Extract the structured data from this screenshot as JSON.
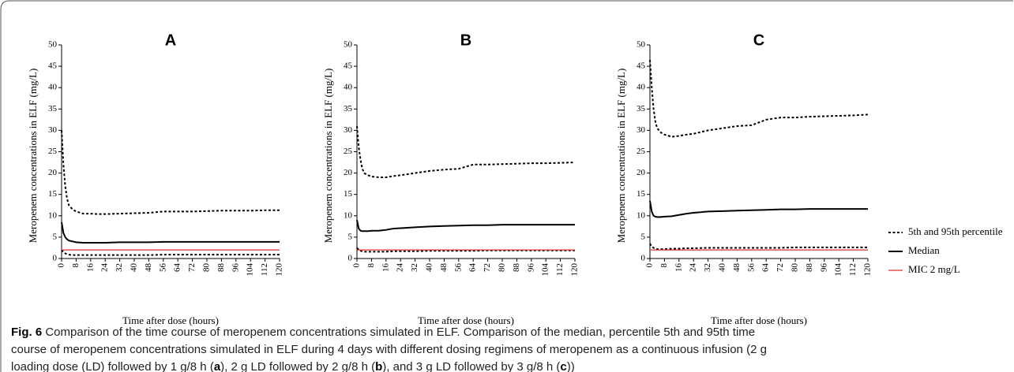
{
  "chart_data": [
    {
      "type": "line",
      "title": "A",
      "xlabel": "Time after dose (hours)",
      "ylabel": "Meropenem concentrations in ELF (mg/L)",
      "x": [
        0,
        1,
        2,
        3,
        4,
        6,
        8,
        12,
        16,
        20,
        24,
        32,
        40,
        48,
        56,
        64,
        72,
        80,
        88,
        96,
        104,
        112,
        120
      ],
      "series": [
        {
          "name": "5th and 95th percentile",
          "color": "#000000",
          "dash": true,
          "values": [
            30,
            22,
            17,
            14,
            12.5,
            11.5,
            11,
            10.5,
            10.5,
            10.4,
            10.4,
            10.5,
            10.6,
            10.7,
            11,
            11,
            11,
            11.1,
            11.2,
            11.2,
            11.2,
            11.3,
            11.3
          ]
        },
        {
          "name": "Median",
          "color": "#000000",
          "dash": false,
          "values": [
            8.5,
            6,
            5,
            4.5,
            4.2,
            4,
            3.8,
            3.7,
            3.7,
            3.7,
            3.7,
            3.8,
            3.8,
            3.8,
            3.9,
            3.9,
            3.9,
            3.9,
            3.9,
            3.9,
            3.9,
            3.9,
            3.9
          ]
        },
        {
          "name": "5th and 95th percentile",
          "color": "#000000",
          "dash": true,
          "values": [
            2,
            1.5,
            1.2,
            1,
            0.9,
            0.8,
            0.8,
            0.8,
            0.8,
            0.8,
            0.8,
            0.8,
            0.8,
            0.8,
            0.9,
            0.9,
            0.9,
            0.9,
            0.9,
            0.9,
            0.9,
            0.9,
            0.9
          ]
        },
        {
          "name": "MIC 2 mg/L",
          "color": "#e03030",
          "dash": false,
          "values": [
            2,
            2,
            2,
            2,
            2,
            2,
            2,
            2,
            2,
            2,
            2,
            2,
            2,
            2,
            2,
            2,
            2,
            2,
            2,
            2,
            2,
            2,
            2
          ]
        }
      ],
      "xlim": [
        0,
        120
      ],
      "xticks": [
        0,
        8,
        16,
        24,
        32,
        40,
        48,
        56,
        64,
        72,
        80,
        88,
        96,
        104,
        112,
        120
      ],
      "ylim": [
        0,
        50
      ],
      "yticks": [
        0,
        5,
        10,
        15,
        20,
        25,
        30,
        35,
        40,
        45,
        50
      ]
    },
    {
      "type": "line",
      "title": "B",
      "xlabel": "Time after dose (hours)",
      "ylabel": "Meropenem concentrations in ELF (mg/L)",
      "x": [
        0,
        1,
        2,
        3,
        4,
        6,
        8,
        12,
        16,
        20,
        24,
        32,
        40,
        48,
        56,
        64,
        72,
        80,
        88,
        96,
        104,
        112,
        120
      ],
      "series": [
        {
          "name": "5th and 95th percentile",
          "color": "#000000",
          "dash": true,
          "values": [
            31,
            26,
            23,
            21,
            20,
            19.5,
            19.2,
            19,
            19,
            19.3,
            19.5,
            20,
            20.5,
            20.8,
            21,
            22,
            22,
            22.1,
            22.2,
            22.3,
            22.3,
            22.4,
            22.5
          ]
        },
        {
          "name": "Median",
          "color": "#000000",
          "dash": false,
          "values": [
            9,
            7,
            6.5,
            6.4,
            6.4,
            6.4,
            6.5,
            6.5,
            6.7,
            7,
            7.1,
            7.3,
            7.5,
            7.6,
            7.7,
            7.8,
            7.8,
            7.9,
            7.9,
            7.9,
            7.9,
            7.9,
            7.9
          ]
        },
        {
          "name": "5th and 95th percentile",
          "color": "#000000",
          "dash": true,
          "values": [
            2.5,
            2,
            1.8,
            1.7,
            1.6,
            1.6,
            1.6,
            1.6,
            1.6,
            1.7,
            1.7,
            1.7,
            1.8,
            1.8,
            1.8,
            1.8,
            1.9,
            1.9,
            1.9,
            1.9,
            1.9,
            1.9,
            1.9
          ]
        },
        {
          "name": "MIC 2 mg/L",
          "color": "#e03030",
          "dash": false,
          "values": [
            2,
            2,
            2,
            2,
            2,
            2,
            2,
            2,
            2,
            2,
            2,
            2,
            2,
            2,
            2,
            2,
            2,
            2,
            2,
            2,
            2,
            2,
            2
          ]
        }
      ],
      "xlim": [
        0,
        120
      ],
      "xticks": [
        0,
        8,
        16,
        24,
        32,
        40,
        48,
        56,
        64,
        72,
        80,
        88,
        96,
        104,
        112,
        120
      ],
      "ylim": [
        0,
        50
      ],
      "yticks": [
        0,
        5,
        10,
        15,
        20,
        25,
        30,
        35,
        40,
        45,
        50
      ]
    },
    {
      "type": "line",
      "title": "C",
      "xlabel": "Time after dose (hours)",
      "ylabel": "Meropenem concentrations in ELF (mg/L)",
      "x": [
        0,
        1,
        2,
        3,
        4,
        6,
        8,
        12,
        16,
        20,
        24,
        32,
        40,
        48,
        56,
        64,
        72,
        80,
        88,
        96,
        104,
        112,
        120
      ],
      "series": [
        {
          "name": "5th and 95th percentile",
          "color": "#000000",
          "dash": true,
          "values": [
            46.5,
            40,
            35,
            32,
            30.5,
            29.5,
            29,
            28.5,
            28.7,
            29,
            29.2,
            30,
            30.5,
            31,
            31.2,
            32.5,
            33,
            33,
            33.2,
            33.3,
            33.4,
            33.5,
            33.7
          ]
        },
        {
          "name": "Median",
          "color": "#000000",
          "dash": false,
          "values": [
            13.5,
            11,
            10,
            9.8,
            9.7,
            9.7,
            9.8,
            9.9,
            10.2,
            10.5,
            10.7,
            11,
            11.1,
            11.2,
            11.3,
            11.4,
            11.5,
            11.5,
            11.6,
            11.6,
            11.6,
            11.6,
            11.6
          ]
        },
        {
          "name": "5th and 95th percentile",
          "color": "#000000",
          "dash": true,
          "values": [
            3.5,
            2.8,
            2.5,
            2.3,
            2.2,
            2.2,
            2.2,
            2.3,
            2.3,
            2.4,
            2.4,
            2.5,
            2.5,
            2.5,
            2.5,
            2.5,
            2.5,
            2.6,
            2.6,
            2.6,
            2.6,
            2.6,
            2.6
          ]
        },
        {
          "name": "MIC 2 mg/L",
          "color": "#e03030",
          "dash": false,
          "values": [
            2,
            2,
            2,
            2,
            2,
            2,
            2,
            2,
            2,
            2,
            2,
            2,
            2,
            2,
            2,
            2,
            2,
            2,
            2,
            2,
            2,
            2,
            2
          ]
        }
      ],
      "xlim": [
        0,
        120
      ],
      "xticks": [
        0,
        8,
        16,
        24,
        32,
        40,
        48,
        56,
        64,
        72,
        80,
        88,
        96,
        104,
        112,
        120
      ],
      "ylim": [
        0,
        50
      ],
      "yticks": [
        0,
        5,
        10,
        15,
        20,
        25,
        30,
        35,
        40,
        45,
        50
      ]
    }
  ],
  "caption": [
    [
      {
        "text": "Fig. 6",
        "bold": true
      },
      {
        "text": " Comparison of the time course of meropenem concentrations simulated in ELF. Comparison of the median, percentile 5th and 95th time",
        "bold": false
      }
    ],
    [
      {
        "text": "course of meropenem concentrations simulated in ELF during 4 days with different dosing regimens of meropenem as a continuous infusion (2 g",
        "bold": false
      }
    ],
    [
      {
        "text": "loading dose (LD) followed by 1 g/8 h (",
        "bold": false
      },
      {
        "text": "a",
        "bold": true
      },
      {
        "text": "), 2 g LD followed by 2 g/8 h (",
        "bold": false
      },
      {
        "text": "b",
        "bold": true
      },
      {
        "text": "), and 3 g LD followed by 3 g/8 h (",
        "bold": false
      },
      {
        "text": "c",
        "bold": true
      },
      {
        "text": "))",
        "bold": false
      }
    ]
  ]
}
